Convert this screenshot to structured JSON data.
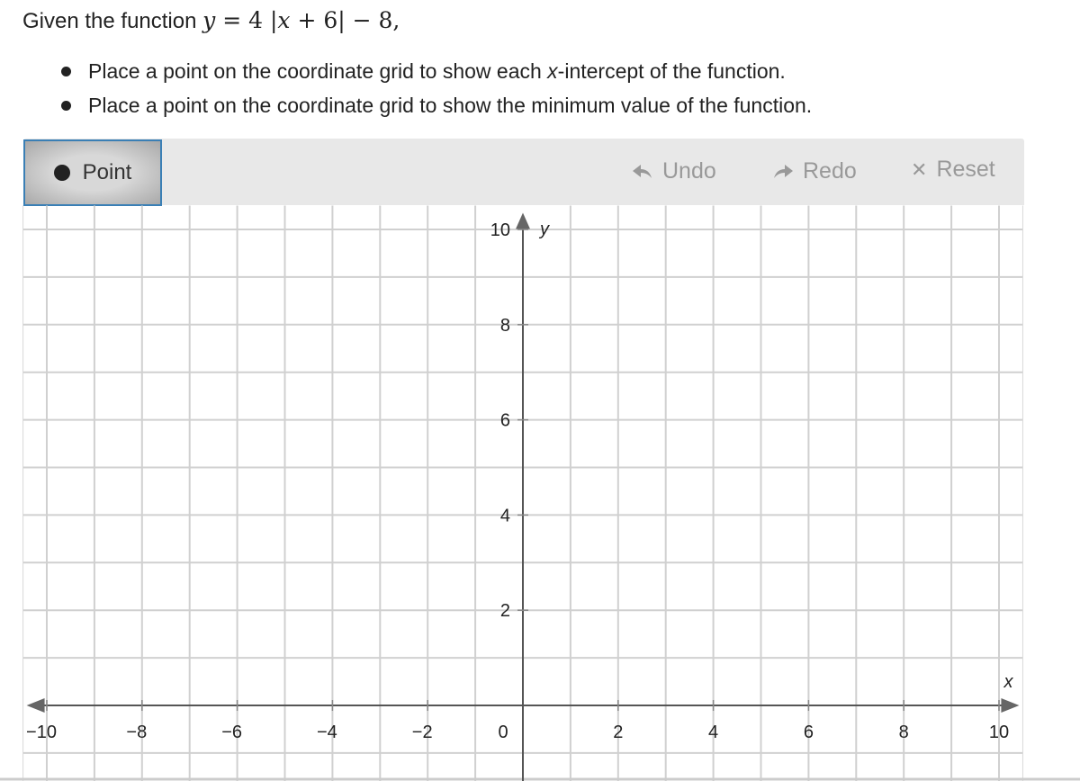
{
  "prompt": {
    "intro": "Given the function ",
    "equation": {
      "y": "y",
      "eq": " = 4",
      "abs_open": "|",
      "x": "x",
      "rest": " + 6",
      "abs_close": "|",
      "tail": " − 8,"
    }
  },
  "instructions": [
    {
      "before": "Place a point on the coordinate grid to show each ",
      "italic": "x",
      "after": "-intercept of the function."
    },
    {
      "before": "Place a point on the coordinate grid to show the minimum value of the function.",
      "italic": "",
      "after": ""
    }
  ],
  "toolbar": {
    "point_label": "Point",
    "undo_label": "Undo",
    "redo_label": "Redo",
    "reset_label": "Reset",
    "accent": "#3a7fb5"
  },
  "chart_data": {
    "type": "scatter",
    "xlabel": "x",
    "ylabel": "y",
    "xlim": [
      -10.5,
      10.5
    ],
    "ylim": [
      -1.6,
      10.5
    ],
    "grid": true,
    "grid_step": 1,
    "x_ticks": [
      -10,
      -8,
      -6,
      -4,
      -2,
      2,
      4,
      6,
      8,
      10
    ],
    "y_ticks": [
      2,
      4,
      6,
      8,
      10
    ],
    "origin_label": "0",
    "points": []
  }
}
